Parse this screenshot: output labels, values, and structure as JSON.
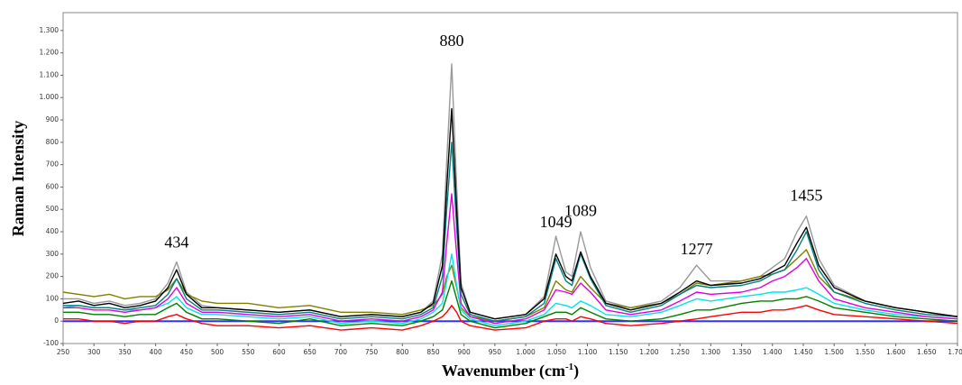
{
  "chart_data": {
    "type": "line",
    "y_label": "Raman Intensity",
    "x_label": {
      "text": "Wavenumber (cm",
      "sup": "-1",
      "end": ")"
    },
    "xlim": [
      250,
      1700
    ],
    "ylim": [
      -100,
      1380
    ],
    "xticks": [
      250,
      300,
      350,
      400,
      450,
      500,
      550,
      600,
      650,
      700,
      750,
      800,
      850,
      900,
      950,
      {
        "value": 1000,
        "label": "1.000"
      },
      {
        "value": 1050,
        "label": "1.050"
      },
      {
        "value": 1100,
        "label": "1.100"
      },
      {
        "value": 1150,
        "label": "1.150"
      },
      {
        "value": 1200,
        "label": "1.200"
      },
      {
        "value": 1250,
        "label": "1.250"
      },
      {
        "value": 1300,
        "label": "1.300"
      },
      {
        "value": 1350,
        "label": "1.350"
      },
      {
        "value": 1400,
        "label": "1.400"
      },
      {
        "value": 1450,
        "label": "1.450"
      },
      {
        "value": 1500,
        "label": "1.500"
      },
      {
        "value": 1550,
        "label": "1.550"
      },
      {
        "value": 1600,
        "label": "1.600"
      },
      {
        "value": 1650,
        "label": "1.650"
      },
      {
        "value": 1700,
        "label": "1.700"
      }
    ],
    "yticks": [
      -100,
      0,
      100,
      200,
      300,
      400,
      500,
      600,
      700,
      800,
      900,
      {
        "value": 1000,
        "label": "1.000"
      },
      {
        "value": 1100,
        "label": "1.100"
      },
      {
        "value": 1200,
        "label": "1.200"
      },
      {
        "value": 1300,
        "label": "1.300"
      }
    ],
    "zero_line_color": "#3333ff",
    "annotations": [
      {
        "label": "434",
        "x": 434,
        "y": 330
      },
      {
        "label": "880",
        "x": 880,
        "y": 1230
      },
      {
        "label": "1049",
        "x": 1049,
        "y": 420
      },
      {
        "label": "1089",
        "x": 1089,
        "y": 470
      },
      {
        "label": "1277",
        "x": 1277,
        "y": 300
      },
      {
        "label": "1455",
        "x": 1455,
        "y": 540
      }
    ],
    "x": [
      250,
      275,
      300,
      325,
      350,
      375,
      400,
      420,
      434,
      450,
      475,
      500,
      550,
      600,
      650,
      700,
      750,
      800,
      830,
      850,
      865,
      872,
      880,
      888,
      895,
      910,
      950,
      1000,
      1030,
      1049,
      1065,
      1075,
      1089,
      1105,
      1130,
      1170,
      1220,
      1250,
      1277,
      1300,
      1350,
      1380,
      1400,
      1420,
      1440,
      1455,
      1475,
      1500,
      1550,
      1600,
      1650,
      1700
    ],
    "series": [
      {
        "color": "#999999",
        "values": [
          100,
          100,
          80,
          90,
          70,
          80,
          100,
          170,
          265,
          130,
          70,
          60,
          50,
          40,
          50,
          20,
          30,
          20,
          40,
          90,
          300,
          720,
          1150,
          600,
          170,
          40,
          10,
          30,
          110,
          380,
          220,
          200,
          400,
          240,
          90,
          60,
          90,
          150,
          250,
          180,
          180,
          200,
          240,
          280,
          400,
          470,
          280,
          160,
          90,
          60,
          40,
          20
        ]
      },
      {
        "color": "#808000",
        "values": [
          130,
          120,
          110,
          120,
          100,
          110,
          110,
          140,
          190,
          120,
          90,
          80,
          80,
          60,
          70,
          40,
          40,
          30,
          50,
          70,
          120,
          200,
          250,
          150,
          60,
          20,
          0,
          20,
          60,
          180,
          140,
          130,
          200,
          150,
          80,
          60,
          80,
          120,
          170,
          160,
          180,
          200,
          210,
          230,
          280,
          320,
          200,
          130,
          90,
          60,
          40,
          20
        ]
      },
      {
        "color": "#ff0000",
        "values": [
          10,
          10,
          0,
          0,
          -10,
          0,
          0,
          20,
          30,
          10,
          -10,
          -20,
          -20,
          -30,
          -20,
          -40,
          -30,
          -40,
          -20,
          0,
          20,
          40,
          70,
          40,
          0,
          -20,
          -40,
          -30,
          0,
          10,
          10,
          0,
          20,
          10,
          -10,
          -20,
          -10,
          0,
          10,
          20,
          40,
          40,
          50,
          50,
          60,
          70,
          50,
          30,
          20,
          10,
          0,
          -10
        ]
      },
      {
        "color": "#008000",
        "values": [
          40,
          40,
          30,
          30,
          20,
          30,
          30,
          60,
          80,
          40,
          10,
          10,
          0,
          -10,
          10,
          -20,
          -10,
          -20,
          0,
          20,
          50,
          110,
          180,
          100,
          30,
          0,
          -30,
          -10,
          20,
          40,
          40,
          30,
          60,
          40,
          10,
          0,
          10,
          30,
          50,
          50,
          80,
          90,
          90,
          100,
          100,
          110,
          90,
          60,
          40,
          20,
          10,
          0
        ]
      },
      {
        "color": "#00e5e5",
        "values": [
          60,
          70,
          60,
          60,
          50,
          50,
          60,
          80,
          110,
          60,
          30,
          30,
          20,
          10,
          20,
          -10,
          0,
          -10,
          10,
          40,
          80,
          180,
          300,
          160,
          50,
          10,
          -20,
          0,
          30,
          80,
          70,
          60,
          90,
          70,
          30,
          20,
          40,
          70,
          100,
          90,
          110,
          120,
          130,
          130,
          140,
          150,
          120,
          80,
          50,
          30,
          20,
          10
        ]
      },
      {
        "color": "#e000e0",
        "values": [
          60,
          60,
          50,
          50,
          40,
          50,
          60,
          100,
          150,
          80,
          40,
          40,
          30,
          20,
          30,
          0,
          10,
          0,
          20,
          50,
          130,
          350,
          570,
          300,
          80,
          20,
          -10,
          10,
          50,
          140,
          130,
          120,
          170,
          130,
          50,
          30,
          50,
          90,
          130,
          120,
          130,
          150,
          180,
          200,
          240,
          280,
          180,
          100,
          60,
          40,
          20,
          10
        ]
      },
      {
        "color": "#008080",
        "values": [
          70,
          70,
          60,
          60,
          50,
          60,
          70,
          120,
          190,
          100,
          50,
          50,
          40,
          30,
          40,
          10,
          20,
          10,
          30,
          60,
          200,
          500,
          800,
          420,
          120,
          30,
          0,
          20,
          80,
          280,
          180,
          160,
          300,
          190,
          70,
          40,
          70,
          120,
          160,
          150,
          160,
          180,
          210,
          230,
          320,
          400,
          230,
          130,
          80,
          50,
          30,
          20
        ]
      },
      {
        "color": "#000000",
        "values": [
          80,
          90,
          70,
          80,
          60,
          70,
          90,
          150,
          230,
          120,
          60,
          60,
          50,
          40,
          50,
          20,
          30,
          20,
          40,
          80,
          250,
          600,
          950,
          500,
          150,
          40,
          10,
          30,
          100,
          300,
          200,
          180,
          310,
          200,
          80,
          50,
          80,
          130,
          180,
          160,
          170,
          190,
          220,
          250,
          350,
          420,
          250,
          150,
          90,
          60,
          40,
          20
        ]
      }
    ]
  }
}
